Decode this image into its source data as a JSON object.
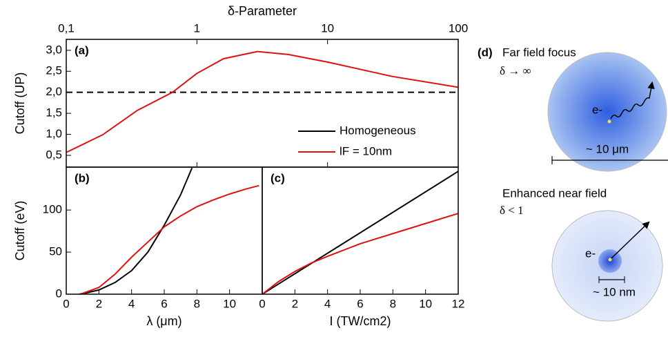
{
  "chart_data": [
    {
      "type": "line",
      "panel_label": "(a)",
      "xlabel": "δ-Parameter",
      "ylabel": "Cutoff (UP)",
      "xscale": "log",
      "xlim": [
        0.1,
        100
      ],
      "xticks": [
        {
          "value": 0.1,
          "label": "0,1"
        },
        1,
        10,
        100
      ],
      "ylim": [
        0.22,
        3.26
      ],
      "yticks": [
        {
          "value": 0.5,
          "label": "0,5"
        },
        {
          "value": 1.0,
          "label": "1,0"
        },
        {
          "value": 1.5,
          "label": "1,5"
        },
        {
          "value": 2.0,
          "label": "2,0"
        },
        {
          "value": 2.5,
          "label": "2,5"
        },
        {
          "value": 3.0,
          "label": "3,0"
        }
      ],
      "reference_line": 2.0,
      "series": [
        {
          "color": "#e01010",
          "x": [
            0.1,
            0.19,
            0.35,
            0.65,
            1.0,
            1.6,
            2.9,
            5.0,
            10,
            31,
            100
          ],
          "values": [
            0.57,
            0.99,
            1.57,
            2.0,
            2.45,
            2.8,
            2.97,
            2.9,
            2.72,
            2.38,
            2.12
          ]
        }
      ]
    },
    {
      "type": "line",
      "panel_label": "(b)",
      "xlabel": "λ (μm)",
      "ylabel": "Cutoff (eV)",
      "xlim": [
        0,
        12
      ],
      "xticks": [
        0,
        2,
        4,
        6,
        8,
        10
      ],
      "ylim": [
        0,
        151
      ],
      "yticks": [
        0,
        50,
        100
      ],
      "series": [
        {
          "name": "Homogeneous",
          "color": "#000000",
          "x": [
            0.8,
            1,
            2,
            3,
            4,
            5,
            6,
            7,
            7.7
          ],
          "values": [
            0,
            0.5,
            5,
            14,
            28,
            50,
            82,
            118,
            150
          ]
        },
        {
          "name": "lF = 10nm",
          "color": "#e01010",
          "x": [
            0.8,
            1,
            2,
            3,
            4,
            5,
            6,
            7,
            8,
            9,
            10,
            11,
            11.8
          ],
          "values": [
            0,
            1,
            8,
            24,
            44,
            62,
            80,
            93,
            104,
            112,
            119,
            125,
            129
          ]
        }
      ]
    },
    {
      "type": "line",
      "panel_label": "(c)",
      "xlabel": "I (TW/cm2)",
      "xlim": [
        0,
        12
      ],
      "xticks": [
        0,
        2,
        4,
        6,
        8,
        10,
        12
      ],
      "ylim": [
        0,
        151
      ],
      "series": [
        {
          "color": "#000000",
          "x": [
            0,
            12
          ],
          "values": [
            0,
            146
          ]
        },
        {
          "color": "#e01010",
          "x": [
            0,
            1,
            2,
            3,
            4,
            6,
            8,
            10,
            12
          ],
          "values": [
            0,
            15,
            27,
            37,
            45,
            60,
            72,
            84,
            96
          ]
        }
      ]
    }
  ],
  "panel_d": {
    "label": "(d)",
    "far_title": "Far field focus",
    "far_condition": "δ → ∞",
    "far_electron": "e-",
    "far_scale": "~ 10 μm",
    "near_title": "Enhanced near field",
    "near_condition": "δ < 1",
    "near_electron": "e-",
    "near_scale": "~ 10 nm"
  }
}
